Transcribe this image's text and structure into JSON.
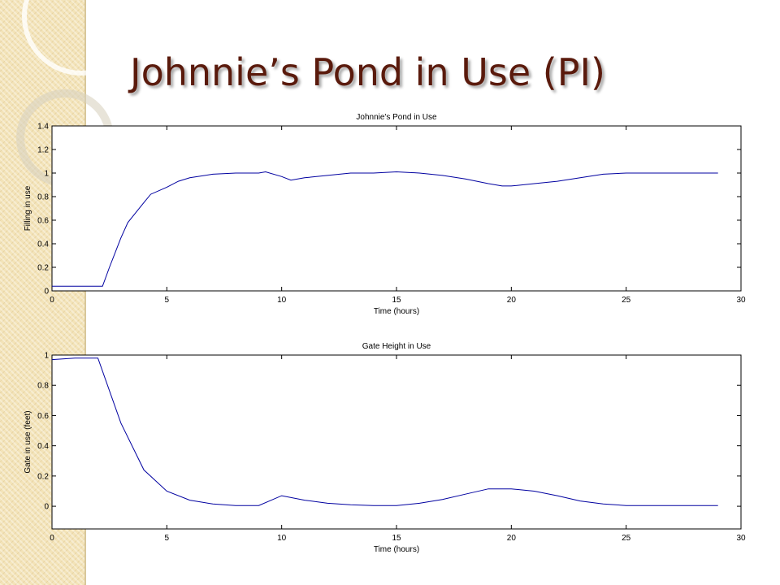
{
  "title": "Johnnie’s Pond in Use (PI)",
  "chart_data": [
    {
      "type": "line",
      "title": "Johnnie's Pond in Use",
      "x_label": "Time (hours)",
      "y_label": "Filling in use",
      "color": "#0000a0",
      "x": [
        0,
        1,
        2,
        2.2,
        2.5,
        3,
        3.3,
        4,
        4.3,
        5,
        5.5,
        6,
        7,
        8,
        9,
        9.3,
        10,
        10.4,
        11,
        12,
        13,
        14,
        15,
        16,
        17,
        18,
        19,
        19.6,
        20,
        21,
        22,
        23,
        24,
        25,
        26,
        27,
        28,
        29
      ],
      "values": [
        0.04,
        0.04,
        0.04,
        0.04,
        0.2,
        0.45,
        0.58,
        0.75,
        0.82,
        0.88,
        0.93,
        0.96,
        0.99,
        1.0,
        1.0,
        1.01,
        0.97,
        0.94,
        0.96,
        0.98,
        1.0,
        1.0,
        1.01,
        1.0,
        0.98,
        0.95,
        0.91,
        0.89,
        0.89,
        0.91,
        0.93,
        0.96,
        0.99,
        1.0,
        1.0,
        1.0,
        1.0,
        1.0
      ],
      "xlim": [
        0,
        30
      ],
      "ylim": [
        0,
        1.4
      ],
      "xticks": [
        0,
        5,
        10,
        15,
        20,
        25,
        30
      ],
      "yticks": [
        0,
        0.2,
        0.4,
        0.6,
        0.8,
        1,
        1.2,
        1.4
      ]
    },
    {
      "type": "line",
      "title": "Gate Height in Use",
      "x_label": "Time (hours)",
      "y_label": "Gate in use (feet)",
      "color": "#0000a0",
      "x": [
        0,
        1,
        2,
        3,
        4,
        5,
        6,
        7,
        8,
        9,
        10,
        11,
        12,
        13,
        14,
        15,
        16,
        17,
        18,
        19,
        20,
        21,
        22,
        23,
        24,
        25,
        26,
        27,
        28,
        29
      ],
      "values": [
        0.97,
        0.98,
        0.98,
        0.55,
        0.24,
        0.1,
        0.04,
        0.015,
        0.005,
        0.005,
        0.07,
        0.04,
        0.02,
        0.01,
        0.005,
        0.005,
        0.02,
        0.045,
        0.08,
        0.115,
        0.115,
        0.1,
        0.07,
        0.035,
        0.015,
        0.005,
        0.005,
        0.005,
        0.005,
        0.005
      ],
      "xlim": [
        0,
        30
      ],
      "ylim": [
        -0.15,
        1
      ],
      "xticks": [
        0,
        5,
        10,
        15,
        20,
        25,
        30
      ],
      "yticks": [
        0,
        0.2,
        0.4,
        0.6,
        0.8,
        1
      ]
    }
  ]
}
